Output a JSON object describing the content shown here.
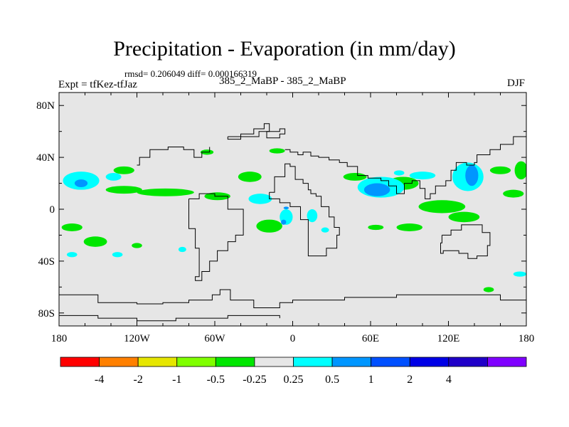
{
  "title": "Precipitation - Evaporation (in mm/day)",
  "stats_text": "rmsd= 0.206049 diff= 0.000166319",
  "center_label": "385_2_MaBP - 385_2_MaBP",
  "left_label": "Expt = tfKez-tfJaz",
  "right_label": "DJF",
  "colors": {
    "background_field": "#e6e6e6",
    "contour_line": "#000000"
  },
  "chart_data": {
    "type": "heatmap",
    "title": "Precipitation - Evaporation (in mm/day)",
    "xlabel": "",
    "ylabel": "",
    "xlim": [
      -180,
      180
    ],
    "ylim": [
      -90,
      90
    ],
    "x_ticks": [
      {
        "value": -180,
        "label": "180"
      },
      {
        "value": -120,
        "label": "120W"
      },
      {
        "value": -60,
        "label": "60W"
      },
      {
        "value": 0,
        "label": "0"
      },
      {
        "value": 60,
        "label": "60E"
      },
      {
        "value": 120,
        "label": "120E"
      },
      {
        "value": 180,
        "label": "180"
      }
    ],
    "y_ticks": [
      {
        "value": 80,
        "label": "80N"
      },
      {
        "value": 40,
        "label": "40N"
      },
      {
        "value": 0,
        "label": "0"
      },
      {
        "value": -40,
        "label": "40S"
      },
      {
        "value": -80,
        "label": "80S"
      }
    ],
    "colorbar": {
      "colors": [
        "#ff0000",
        "#ff8000",
        "#e6e600",
        "#80ff00",
        "#00e600",
        "#e6e6e6",
        "#00ffff",
        "#0096ff",
        "#0050ff",
        "#0000e6",
        "#2000c8",
        "#8000ff"
      ],
      "labels": [
        "-4",
        "-2",
        "-1",
        "-0.5",
        "-0.25",
        "0.25",
        "0.5",
        "1",
        "2",
        "4"
      ]
    },
    "regions": [
      {
        "level": "-0.25",
        "color": "#00e600",
        "lon": -98,
        "lat": 13,
        "rx": 22,
        "ry": 3
      },
      {
        "level": "-0.25",
        "color": "#00e600",
        "lon": -130,
        "lat": 15,
        "rx": 14,
        "ry": 3
      },
      {
        "level": "-0.25",
        "color": "#00e600",
        "lon": -58,
        "lat": 10,
        "rx": 10,
        "ry": 3
      },
      {
        "level": "-0.25",
        "color": "#00e600",
        "lon": -33,
        "lat": 25,
        "rx": 9,
        "ry": 4
      },
      {
        "level": "-0.25",
        "color": "#00e600",
        "lon": -66,
        "lat": 44,
        "rx": 5,
        "ry": 2
      },
      {
        "level": "-0.25",
        "color": "#00e600",
        "lon": -12,
        "lat": 45,
        "rx": 6,
        "ry": 2
      },
      {
        "level": "-0.25",
        "color": "#00e600",
        "lon": -130,
        "lat": 30,
        "rx": 8,
        "ry": 3
      },
      {
        "level": "-0.25",
        "color": "#00e600",
        "lon": -152,
        "lat": -25,
        "rx": 9,
        "ry": 4
      },
      {
        "level": "-0.25",
        "color": "#00e600",
        "lon": -170,
        "lat": -14,
        "rx": 8,
        "ry": 3
      },
      {
        "level": "-0.25",
        "color": "#00e600",
        "lon": -120,
        "lat": -28,
        "rx": 4,
        "ry": 2
      },
      {
        "level": "-0.25",
        "color": "#00e600",
        "lon": -18,
        "lat": -13,
        "rx": 10,
        "ry": 5
      },
      {
        "level": "-0.25",
        "color": "#00e600",
        "lon": 48,
        "lat": 25,
        "rx": 9,
        "ry": 3
      },
      {
        "level": "-0.25",
        "color": "#00e600",
        "lon": 85,
        "lat": 20,
        "rx": 12,
        "ry": 5
      },
      {
        "level": "-0.25",
        "color": "#00e600",
        "lon": 115,
        "lat": 2,
        "rx": 18,
        "ry": 5
      },
      {
        "level": "-0.25",
        "color": "#00e600",
        "lon": 132,
        "lat": -6,
        "rx": 12,
        "ry": 4
      },
      {
        "level": "-0.25",
        "color": "#00e600",
        "lon": 90,
        "lat": -14,
        "rx": 10,
        "ry": 3
      },
      {
        "level": "-0.25",
        "color": "#00e600",
        "lon": 64,
        "lat": -14,
        "rx": 6,
        "ry": 2
      },
      {
        "level": "-0.25",
        "color": "#00e600",
        "lon": 160,
        "lat": 30,
        "rx": 8,
        "ry": 3
      },
      {
        "level": "-0.25",
        "color": "#00e600",
        "lon": 170,
        "lat": 12,
        "rx": 8,
        "ry": 3
      },
      {
        "level": "-0.25",
        "color": "#00e600",
        "lon": 151,
        "lat": -62,
        "rx": 4,
        "ry": 2
      },
      {
        "level": "-0.25",
        "color": "#00e600",
        "lon": 176,
        "lat": 30,
        "rx": 5,
        "ry": 7
      },
      {
        "level": "0.5",
        "color": "#00ffff",
        "lon": -163,
        "lat": 22,
        "rx": 14,
        "ry": 7
      },
      {
        "level": "0.5",
        "color": "#00ffff",
        "lon": -138,
        "lat": 25,
        "rx": 6,
        "ry": 3
      },
      {
        "level": "0.5",
        "color": "#00ffff",
        "lon": -25,
        "lat": 8,
        "rx": 9,
        "ry": 4
      },
      {
        "level": "0.5",
        "color": "#00ffff",
        "lon": -5,
        "lat": -6,
        "rx": 5,
        "ry": 6
      },
      {
        "level": "0.5",
        "color": "#00ffff",
        "lon": 15,
        "lat": -5,
        "rx": 4,
        "ry": 5
      },
      {
        "level": "0.5",
        "color": "#00ffff",
        "lon": 68,
        "lat": 17,
        "rx": 18,
        "ry": 8
      },
      {
        "level": "0.5",
        "color": "#00ffff",
        "lon": 135,
        "lat": 25,
        "rx": 12,
        "ry": 11
      },
      {
        "level": "0.5",
        "color": "#00ffff",
        "lon": 100,
        "lat": 26,
        "rx": 10,
        "ry": 3
      },
      {
        "level": "0.5",
        "color": "#00ffff",
        "lon": -170,
        "lat": -35,
        "rx": 4,
        "ry": 2
      },
      {
        "level": "0.5",
        "color": "#00ffff",
        "lon": -135,
        "lat": -35,
        "rx": 4,
        "ry": 2
      },
      {
        "level": "0.5",
        "color": "#00ffff",
        "lon": -85,
        "lat": -31,
        "rx": 3,
        "ry": 2
      },
      {
        "level": "0.5",
        "color": "#00ffff",
        "lon": 25,
        "lat": -16,
        "rx": 3,
        "ry": 2
      },
      {
        "level": "0.5",
        "color": "#00ffff",
        "lon": 175,
        "lat": -50,
        "rx": 5,
        "ry": 2
      },
      {
        "level": "0.5",
        "color": "#00ffff",
        "lon": 82,
        "lat": 28,
        "rx": 4,
        "ry": 2
      },
      {
        "level": "1",
        "color": "#0096ff",
        "lon": -163,
        "lat": 20,
        "rx": 5,
        "ry": 3
      },
      {
        "level": "1",
        "color": "#0096ff",
        "lon": 65,
        "lat": 15,
        "rx": 10,
        "ry": 5
      },
      {
        "level": "1",
        "color": "#0096ff",
        "lon": 138,
        "lat": 26,
        "rx": 5,
        "ry": 8
      },
      {
        "level": "1",
        "color": "#0096ff",
        "lon": -7,
        "lat": -10,
        "rx": 2,
        "ry": 2
      },
      {
        "level": "1",
        "color": "#0096ff",
        "lon": -5,
        "lat": 1,
        "rx": 2,
        "ry": 1
      }
    ],
    "continent_outlines": [
      [
        [
          -18,
          13
        ],
        [
          -14,
          25
        ],
        [
          -6,
          35
        ],
        [
          -2,
          33
        ],
        [
          2,
          23
        ],
        [
          8,
          20
        ],
        [
          12,
          15
        ],
        [
          14,
          12
        ],
        [
          18,
          10
        ],
        [
          22,
          2
        ],
        [
          28,
          -6
        ],
        [
          32,
          -14
        ],
        [
          36,
          -20
        ],
        [
          34,
          -30
        ],
        [
          26,
          -36
        ],
        [
          18,
          -36
        ],
        [
          12,
          -20
        ],
        [
          12,
          -8
        ],
        [
          6,
          2
        ],
        [
          -2,
          5
        ],
        [
          -10,
          8
        ],
        [
          -18,
          13
        ]
      ],
      [
        [
          -80,
          8
        ],
        [
          -72,
          12
        ],
        [
          -60,
          10
        ],
        [
          -50,
          0
        ],
        [
          -38,
          -8
        ],
        [
          -38,
          -20
        ],
        [
          -44,
          -25
        ],
        [
          -50,
          -32
        ],
        [
          -58,
          -40
        ],
        [
          -64,
          -48
        ],
        [
          -70,
          -55
        ],
        [
          -75,
          -52
        ],
        [
          -72,
          -40
        ],
        [
          -72,
          -30
        ],
        [
          -75,
          -15
        ],
        [
          -80,
          -5
        ],
        [
          -80,
          8
        ]
      ],
      [
        [
          115,
          -20
        ],
        [
          122,
          -16
        ],
        [
          130,
          -12
        ],
        [
          137,
          -12
        ],
        [
          142,
          -12
        ],
        [
          146,
          -18
        ],
        [
          152,
          -28
        ],
        [
          150,
          -36
        ],
        [
          142,
          -38
        ],
        [
          135,
          -34
        ],
        [
          128,
          -32
        ],
        [
          116,
          -34
        ],
        [
          114,
          -26
        ],
        [
          115,
          -20
        ]
      ],
      [
        [
          -6,
          46
        ],
        [
          -2,
          44
        ],
        [
          4,
          42
        ],
        [
          8,
          44
        ],
        [
          14,
          41
        ],
        [
          20,
          40
        ],
        [
          28,
          38
        ],
        [
          36,
          36
        ],
        [
          42,
          33
        ],
        [
          50,
          26
        ],
        [
          58,
          24
        ],
        [
          68,
          22
        ],
        [
          74,
          18
        ],
        [
          80,
          12
        ],
        [
          86,
          20
        ],
        [
          92,
          22
        ],
        [
          98,
          16
        ],
        [
          102,
          8
        ],
        [
          106,
          12
        ],
        [
          110,
          18
        ],
        [
          118,
          22
        ],
        [
          122,
          30
        ],
        [
          126,
          36
        ],
        [
          134,
          34
        ],
        [
          140,
          36
        ],
        [
          142,
          42
        ],
        [
          152,
          46
        ],
        [
          160,
          50
        ],
        [
          170,
          56
        ],
        [
          180,
          62
        ]
      ],
      [
        [
          -180,
          -66
        ],
        [
          -150,
          -72
        ],
        [
          -120,
          -73
        ],
        [
          -100,
          -72
        ],
        [
          -80,
          -70
        ],
        [
          -62,
          -66
        ],
        [
          -56,
          -62
        ],
        [
          -48,
          -70
        ],
        [
          -30,
          -76
        ],
        [
          -10,
          -72
        ],
        [
          0,
          -70
        ],
        [
          20,
          -70
        ],
        [
          40,
          -68
        ],
        [
          60,
          -68
        ],
        [
          80,
          -66
        ],
        [
          100,
          -66
        ],
        [
          120,
          -66
        ],
        [
          140,
          -66
        ],
        [
          160,
          -70
        ],
        [
          180,
          -76
        ]
      ],
      [
        [
          -180,
          -82
        ],
        [
          -150,
          -84
        ],
        [
          -120,
          -86
        ],
        [
          -90,
          -84
        ],
        [
          -70,
          -84
        ],
        [
          -50,
          -82
        ],
        [
          -30,
          -82
        ],
        [
          -10,
          -84
        ]
      ],
      [
        [
          -50,
          56
        ],
        [
          -40,
          58
        ],
        [
          -30,
          62
        ],
        [
          -22,
          66
        ],
        [
          -18,
          60
        ],
        [
          -26,
          56
        ],
        [
          -40,
          54
        ],
        [
          -50,
          56
        ]
      ],
      [
        [
          -120,
          34
        ],
        [
          -118,
          40
        ],
        [
          -110,
          46
        ],
        [
          -96,
          48
        ],
        [
          -84,
          46
        ],
        [
          -76,
          40
        ],
        [
          -70,
          44
        ],
        [
          -64,
          48
        ]
      ],
      [
        [
          -20,
          60
        ],
        [
          -10,
          62
        ],
        [
          -6,
          58
        ],
        [
          -10,
          55
        ],
        [
          -20,
          60
        ]
      ]
    ]
  }
}
